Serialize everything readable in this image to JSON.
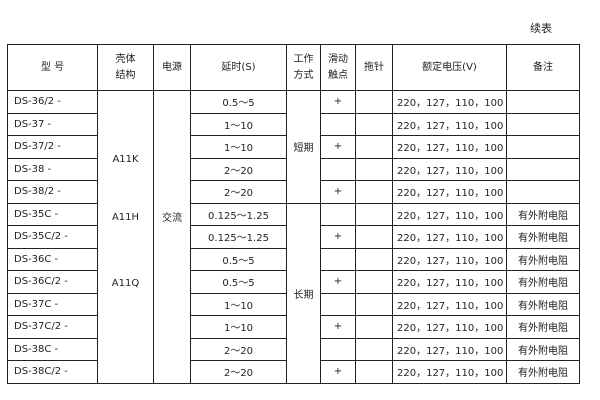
{
  "continued_label": "续表",
  "headers": {
    "model": "型  号",
    "shell": "壳体\n结构",
    "power": "电源",
    "delay": "延时(S)",
    "mode": "工作\n方式",
    "slide": "滑动\n触点",
    "pointer": "拖针",
    "voltage": "额定电压(V)",
    "note": "备注"
  },
  "shell": {
    "a": "A11K",
    "b": "A11H",
    "c": "A11Q"
  },
  "power": "交流",
  "mode": {
    "short": "短期",
    "long": "长期"
  },
  "rows": [
    {
      "model": "DS-36/2 -",
      "delay": "0.5～5",
      "slide": "+",
      "pointer": "",
      "voltage": "220，127，110，100",
      "note": ""
    },
    {
      "model": "DS-37  -",
      "delay": "1～10",
      "slide": "",
      "pointer": "",
      "voltage": "220，127，110，100",
      "note": ""
    },
    {
      "model": "DS-37/2 -",
      "delay": "1～10",
      "slide": "+",
      "pointer": "",
      "voltage": "220，127，110，100",
      "note": ""
    },
    {
      "model": "DS-38  -",
      "delay": "2～20",
      "slide": "",
      "pointer": "",
      "voltage": "220，127，110，100",
      "note": ""
    },
    {
      "model": "DS-38/2 -",
      "delay": "2～20",
      "slide": "+",
      "pointer": "",
      "voltage": "220，127，110，100",
      "note": ""
    },
    {
      "model": "DS-35C  -",
      "delay": "0.125～1.25",
      "slide": "",
      "pointer": "",
      "voltage": "220，127，110，100",
      "note": "有外附电阻"
    },
    {
      "model": "DS-35C/2 -",
      "delay": "0.125～1.25",
      "slide": "+",
      "pointer": "",
      "voltage": "220，127，110，100",
      "note": "有外附电阻"
    },
    {
      "model": "DS-36C  -",
      "delay": "0.5～5",
      "slide": "",
      "pointer": "",
      "voltage": "220，127，110，100",
      "note": "有外附电阻"
    },
    {
      "model": "DS-36C/2 -",
      "delay": "0.5～5",
      "slide": "+",
      "pointer": "",
      "voltage": "220，127，110，100",
      "note": "有外附电阻"
    },
    {
      "model": "DS-37C  -",
      "delay": "1～10",
      "slide": "",
      "pointer": "",
      "voltage": "220，127，110，100",
      "note": "有外附电阻"
    },
    {
      "model": "DS-37C/2 -",
      "delay": "1～10",
      "slide": "+",
      "pointer": "",
      "voltage": "220，127，110，100",
      "note": "有外附电阻"
    },
    {
      "model": "DS-38C  -",
      "delay": "2～20",
      "slide": "",
      "pointer": "",
      "voltage": "220，127，110，100",
      "note": "有外附电阻"
    },
    {
      "model": "DS-38C/2  -",
      "delay": "2～20",
      "slide": "+",
      "pointer": "",
      "voltage": "220，127，110，100",
      "note": "有外附电阻"
    }
  ]
}
